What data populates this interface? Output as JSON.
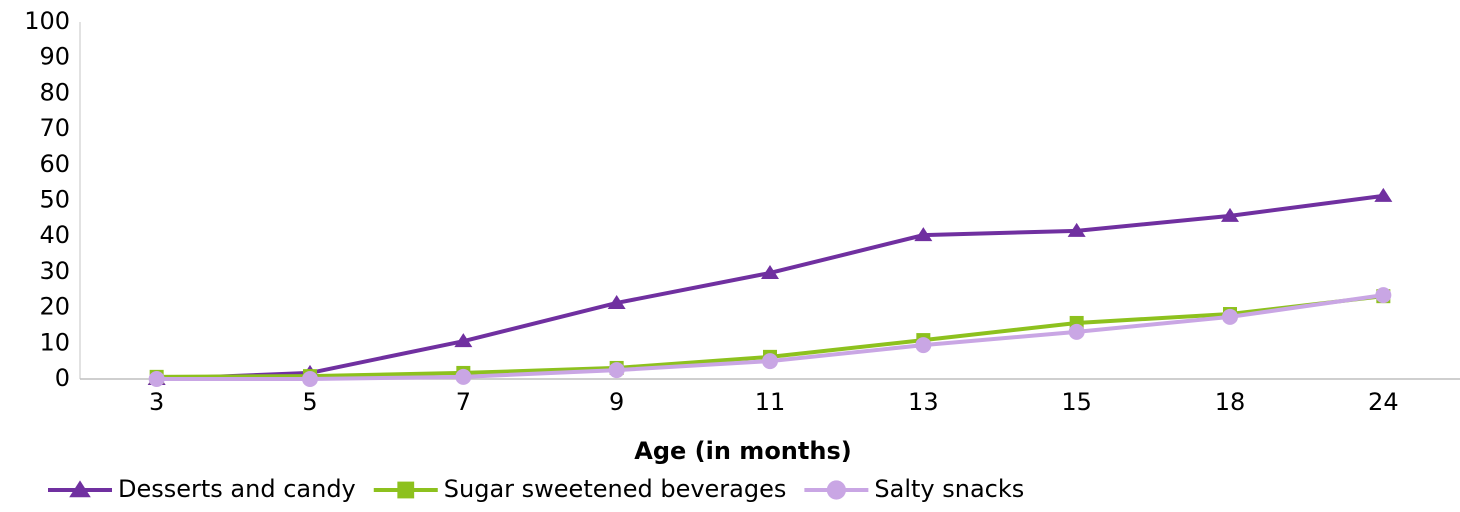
{
  "chart_data": {
    "type": "line",
    "x_label": "Age (in months)",
    "categories": [
      "3",
      "5",
      "7",
      "9",
      "11",
      "13",
      "15",
      "18",
      "24"
    ],
    "series": [
      {
        "name": "Desserts and candy",
        "color": "#7030a0",
        "marker": "triangle",
        "values": [
          0,
          1.7,
          10.6,
          21.3,
          29.7,
          40.3,
          41.5,
          45.7,
          51.3
        ]
      },
      {
        "name": "Sugar sweetened beverages",
        "color": "#8dc11e",
        "marker": "square",
        "values": [
          0.6,
          0.8,
          1.7,
          3.1,
          6.2,
          10.9,
          15.7,
          18.2,
          23.2
        ]
      },
      {
        "name": "Salty snacks",
        "color": "#c9a6e4",
        "marker": "circle",
        "values": [
          0,
          0,
          0.6,
          2.5,
          5,
          9.5,
          13.2,
          17.4,
          23.5
        ]
      }
    ],
    "ylim": [
      0,
      100
    ],
    "yticks": [
      0,
      10,
      20,
      30,
      40,
      50,
      60,
      70,
      80,
      90,
      100
    ],
    "grid": false,
    "legend": "bottom"
  }
}
